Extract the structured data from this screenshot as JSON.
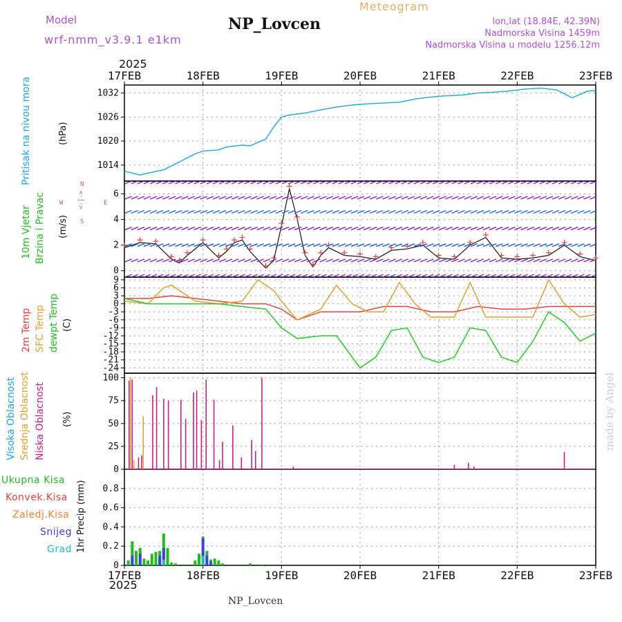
{
  "header": {
    "model_label": "Model",
    "model_name": "wrf-nmm_v3.9.1 e1km",
    "station_title": "NP_Lovcen",
    "meteogram_label": "Meteogram",
    "lonlat": "lon,lat (18.84E, 42.39N)",
    "altitude": "Nadmorska Visina 1459m",
    "model_altitude": "Nadmorska Visina u modelu 1256.12m",
    "year_top": "2025",
    "year_bottom": "2025",
    "footer_station": "NP_Lovcen",
    "credit": "made by Angel"
  },
  "colors": {
    "pressure": "#1aa6e6",
    "temp2m": "#e84040",
    "sfc_temp": "#e0a030",
    "dewpt": "#22cc22",
    "cloud_high": "#1aa6e6",
    "cloud_mid": "#e0a030",
    "cloud_low": "#c0208a",
    "precip_total": "#22bb22",
    "precip_conv": "#e84040",
    "precip_frz": "#f08030",
    "snow": "#4040dd",
    "graupel": "#20c0c0",
    "label_purple": "#b050d0",
    "label_gold": "#e0b060",
    "credit": "#cfcfcf"
  },
  "x_axis": {
    "ticks": [
      "17FEB",
      "18FEB",
      "19FEB",
      "20FEB",
      "21FEB",
      "22FEB",
      "23FEB"
    ],
    "range_days": [
      0,
      6
    ]
  },
  "panels": {
    "pressure": {
      "ylabel_main": "Pritisak na nivou mora",
      "ylabel_unit": "(hPa)"
    },
    "wind": {
      "ylabel_main": "10m Vjetar",
      "ylabel_sub": "Brzina i Pravac",
      "ylabel_unit": "(m/s)",
      "compass_N": "N",
      "compass_S": "S",
      "compass_E": "E",
      "compass_W": "W",
      "compass_mid": "<-|->"
    },
    "temp": {
      "ylabel_2m": "2m Temp",
      "ylabel_sfc": "SFC Temp",
      "ylabel_dew": "dewpt Temp",
      "ylabel_unit": "(C)"
    },
    "cloud": {
      "ylabel_high": "Visoka Oblacnost",
      "ylabel_mid": "Srednja Oblacnost",
      "ylabel_low": "Niska Oblacnost",
      "ylabel_unit": "(%)"
    },
    "precip": {
      "legend_total": "Ukupna Kisa",
      "legend_conv": "Konvek.Kisa",
      "legend_frz": "Zaledj.Kisa",
      "legend_snow": "Snijeg",
      "legend_grad": "Grad",
      "ylabel_unit": "1hr Precip (mm)"
    }
  },
  "chart_data": [
    {
      "type": "line",
      "panel": "pressure",
      "ylim": [
        1010,
        1034
      ],
      "yticks": [
        1014,
        1020,
        1026,
        1032
      ],
      "series": [
        {
          "key": "pressure",
          "x": [
            0,
            0.1,
            0.2,
            0.3,
            0.5,
            0.7,
            0.9,
            1.0,
            1.2,
            1.3,
            1.5,
            1.6,
            1.8,
            1.9,
            2.0,
            2.1,
            2.3,
            2.5,
            2.7,
            2.9,
            3.1,
            3.3,
            3.5,
            3.7,
            3.9,
            4.1,
            4.3,
            4.5,
            4.7,
            4.9,
            5.1,
            5.3,
            5.5,
            5.7,
            5.9,
            6.0
          ],
          "values": [
            1012.5,
            1012.0,
            1011.5,
            1012.0,
            1012.8,
            1014.8,
            1016.8,
            1017.5,
            1017.8,
            1018.5,
            1019.0,
            1018.8,
            1020.5,
            1023.5,
            1026.0,
            1026.5,
            1027.0,
            1027.8,
            1028.5,
            1029.0,
            1029.3,
            1029.5,
            1029.7,
            1030.5,
            1031.0,
            1031.3,
            1031.5,
            1032.0,
            1032.2,
            1032.5,
            1033.0,
            1033.2,
            1032.8,
            1030.8,
            1032.5,
            1032.6
          ]
        }
      ]
    },
    {
      "type": "line",
      "panel": "wind",
      "ylim": [
        -0.5,
        7
      ],
      "yticks": [
        0,
        2,
        4,
        6
      ],
      "series": [
        {
          "key": "wind_speed",
          "x": [
            0,
            0.2,
            0.4,
            0.6,
            0.7,
            0.8,
            1.0,
            1.2,
            1.3,
            1.4,
            1.5,
            1.6,
            1.8,
            1.9,
            2.0,
            2.1,
            2.2,
            2.3,
            2.4,
            2.5,
            2.6,
            2.8,
            3.0,
            3.2,
            3.4,
            3.6,
            3.8,
            4.0,
            4.2,
            4.4,
            4.6,
            4.8,
            5.0,
            5.2,
            5.4,
            5.6,
            5.8,
            6.0
          ],
          "values": [
            1.8,
            2.2,
            2.1,
            0.9,
            0.6,
            1.2,
            2.2,
            1.0,
            1.5,
            2.2,
            2.4,
            1.5,
            0.2,
            0.8,
            3.5,
            6.4,
            4.0,
            1.2,
            0.3,
            1.2,
            1.8,
            1.2,
            1.1,
            0.9,
            1.6,
            1.7,
            2.0,
            1.0,
            0.9,
            2.0,
            2.6,
            1.0,
            0.9,
            1.0,
            1.2,
            2.0,
            1.1,
            0.8
          ]
        }
      ]
    },
    {
      "type": "line",
      "panel": "temp",
      "ylim": [
        -26,
        10
      ],
      "yticks": [
        9,
        6,
        3,
        0,
        -3,
        -6,
        -9,
        -12,
        -15,
        -18,
        -21,
        -24
      ],
      "series": [
        {
          "key": "temp2m",
          "x": [
            0,
            0.3,
            0.6,
            0.9,
            1.2,
            1.5,
            1.8,
            2.0,
            2.2,
            2.5,
            2.8,
            3.0,
            3.3,
            3.6,
            3.9,
            4.2,
            4.5,
            4.8,
            5.1,
            5.4,
            5.7,
            6.0
          ],
          "values": [
            2,
            2,
            3,
            2,
            1,
            0,
            0,
            -2,
            -6,
            -3,
            -3,
            -3,
            -1,
            -1,
            -3,
            -3,
            -1,
            -2,
            -2,
            -1,
            -1,
            -1
          ]
        },
        {
          "key": "sfc_temp",
          "x": [
            0,
            0.3,
            0.5,
            0.6,
            0.9,
            1.2,
            1.5,
            1.7,
            1.9,
            2.0,
            2.2,
            2.5,
            2.7,
            2.9,
            3.1,
            3.3,
            3.5,
            3.7,
            3.9,
            4.2,
            4.4,
            4.6,
            4.9,
            5.2,
            5.4,
            5.6,
            5.8,
            6.0
          ],
          "values": [
            1,
            0,
            6,
            7,
            1,
            0,
            1,
            9,
            5,
            1,
            -6,
            -2,
            7,
            0,
            -3,
            -3,
            8,
            0,
            -5,
            -5,
            8,
            -5,
            -5,
            -5,
            9,
            0,
            -5,
            -4
          ]
        },
        {
          "key": "dewpt",
          "x": [
            0,
            0.3,
            0.6,
            0.9,
            1.2,
            1.5,
            1.8,
            2.0,
            2.2,
            2.5,
            2.7,
            2.9,
            3.0,
            3.2,
            3.4,
            3.6,
            3.8,
            4.0,
            4.2,
            4.4,
            4.6,
            4.8,
            5.0,
            5.2,
            5.4,
            5.6,
            5.8,
            6.0
          ],
          "values": [
            2,
            0,
            0,
            0,
            0,
            -1,
            -2,
            -9,
            -13,
            -12,
            -12,
            -20,
            -24,
            -20,
            -10,
            -9,
            -20,
            -22,
            -20,
            -9,
            -10,
            -20,
            -22,
            -14,
            -3,
            -7,
            -14,
            -11
          ]
        }
      ]
    },
    {
      "type": "bar",
      "panel": "cloud",
      "ylim": [
        0,
        105
      ],
      "yticks": [
        0,
        25,
        50,
        75,
        100
      ],
      "series": [
        {
          "key": "cloud_low",
          "x": [
            0.06,
            0.1,
            0.18,
            0.22,
            0.36,
            0.41,
            0.5,
            0.56,
            0.72,
            0.78,
            0.88,
            0.92,
            0.98,
            1.04,
            1.14,
            1.21,
            1.25,
            1.38,
            1.49,
            1.62,
            1.67,
            1.75,
            2.15,
            4.2,
            4.38,
            4.45,
            5.6
          ],
          "values": [
            97,
            98,
            13,
            15,
            81,
            90,
            77,
            75,
            76,
            55,
            84,
            86,
            54,
            98,
            76,
            10,
            30,
            48,
            13,
            32,
            20,
            100,
            3,
            5,
            7,
            3,
            19
          ]
        },
        {
          "key": "cloud_mid",
          "x": [
            0.08,
            0.12,
            0.24
          ],
          "values": [
            100,
            10,
            58
          ]
        },
        {
          "key": "cloud_high",
          "x": [],
          "values": []
        }
      ]
    },
    {
      "type": "bar",
      "panel": "precip",
      "ylim": [
        0,
        1.0
      ],
      "yticks": [
        0,
        0.2,
        0.4,
        0.6,
        0.8
      ],
      "series": [
        {
          "key": "precip_total",
          "x": [
            0.05,
            0.1,
            0.15,
            0.2,
            0.25,
            0.3,
            0.35,
            0.4,
            0.45,
            0.5,
            0.55,
            0.6,
            0.65,
            0.9,
            0.95,
            1.0,
            1.05,
            1.1,
            1.15,
            1.2,
            1.25,
            1.6,
            1.75
          ],
          "values": [
            0.05,
            0.25,
            0.15,
            0.18,
            0.07,
            0.05,
            0.12,
            0.14,
            0.15,
            0.33,
            0.18,
            0.03,
            0.02,
            0.05,
            0.12,
            0.3,
            0.15,
            0.06,
            0.07,
            0.05,
            0.02,
            0.02,
            0.01
          ]
        },
        {
          "key": "snow",
          "x": [
            0.1,
            0.2,
            0.45,
            0.5,
            1.0,
            1.05,
            1.1
          ],
          "values": [
            0.1,
            0.12,
            0.1,
            0.18,
            0.28,
            0.1,
            0.04
          ]
        },
        {
          "key": "graupel",
          "x": [
            0.5,
            1.0
          ],
          "values": [
            0.06,
            0.1
          ]
        }
      ]
    }
  ]
}
